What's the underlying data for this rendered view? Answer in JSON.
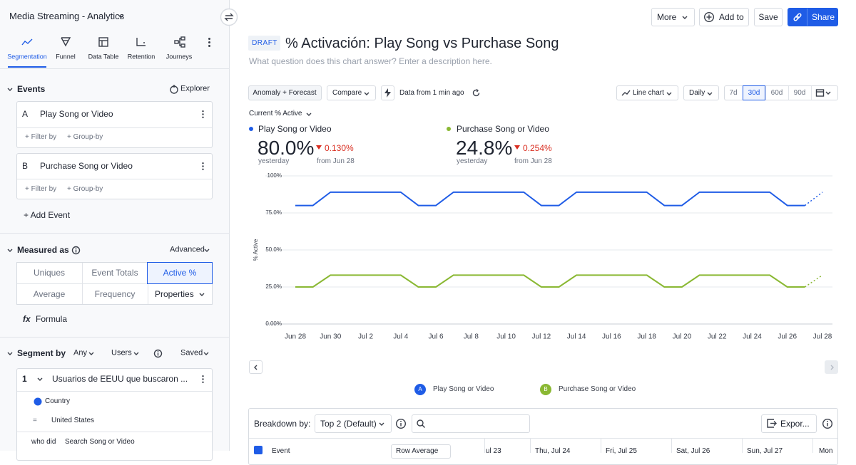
{
  "sidebar": {
    "project": "Media Streaming - Analytics",
    "tabs": [
      "Segmentation",
      "Funnel",
      "Data Table",
      "Retention",
      "Journeys"
    ],
    "events_heading": "Events",
    "explorer": "Explorer",
    "events": [
      {
        "letter": "A",
        "name": "Play Song or Video",
        "filter": "+ Filter by",
        "group": "+ Group-by"
      },
      {
        "letter": "B",
        "name": "Purchase Song or Video",
        "filter": "+ Filter by",
        "group": "+ Group-by"
      }
    ],
    "add_event": "+ Add Event",
    "measured_as": "Measured as",
    "advanced": "Advanced",
    "measures": [
      "Uniques",
      "Event Totals",
      "Active %",
      "Average",
      "Frequency",
      "Properties"
    ],
    "formula_icon": "fx",
    "formula": "Formula",
    "segment_by": "Segment by",
    "any": "Any",
    "users": "Users",
    "saved": "Saved",
    "segment": {
      "number": "1",
      "name": "Usuarios de EEUU que buscaron ...",
      "property": "Country",
      "operator": "=",
      "value": "United States",
      "who_did": "who did",
      "event": "Search Song or Video"
    }
  },
  "header": {
    "more": "More",
    "add_to": "Add to",
    "save": "Save",
    "share": "Share",
    "draft": "DRAFT",
    "title": "% Activación: Play Song vs Purchase Song",
    "description": "What question does this chart answer? Enter a description here."
  },
  "toolbar": {
    "anomaly": "Anomaly + Forecast",
    "compare": "Compare",
    "freshness": "Data from 1 min ago",
    "chart_type": "Line chart",
    "interval": "Daily",
    "ranges": [
      "7d",
      "30d",
      "60d",
      "90d"
    ]
  },
  "metric_selector": "Current % Active",
  "summary": [
    {
      "value": "80.0%",
      "change": "0.130%",
      "period": "yesterday",
      "from": "from Jun 28"
    },
    {
      "value": "24.8%",
      "change": "0.254%",
      "period": "yesterday",
      "from": "from Jun 28"
    }
  ],
  "chart_data": {
    "type": "line",
    "ylabel": "% Active",
    "categories": [
      "Jun 28",
      null,
      "Jun 30",
      null,
      "Jul 2",
      null,
      "Jul 4",
      null,
      "Jul 6",
      null,
      "Jul 8",
      null,
      "Jul 10",
      null,
      "Jul 12",
      null,
      "Jul 14",
      null,
      "Jul 16",
      null,
      "Jul 18",
      null,
      "Jul 20",
      null,
      "Jul 22",
      null,
      "Jul 24",
      null,
      "Jul 26",
      null,
      "Jul 28"
    ],
    "series": [
      {
        "name": "Play Song or Video",
        "color": "#1f5ce6",
        "forecast_last": true,
        "values": [
          80,
          80,
          89,
          89,
          89,
          89,
          89,
          80,
          80,
          89,
          89,
          89,
          89,
          89,
          80,
          80,
          89,
          89,
          89,
          89,
          89,
          80,
          80,
          89,
          89,
          89,
          89,
          89,
          80,
          80,
          89
        ]
      },
      {
        "name": "Purchase Song or Video",
        "color": "#8ab833",
        "forecast_last": true,
        "values": [
          25,
          25,
          33,
          33,
          33,
          33,
          33,
          25,
          25,
          33,
          33,
          33,
          33,
          33,
          25,
          25,
          33,
          33,
          33,
          33,
          33,
          25,
          25,
          33,
          33,
          33,
          33,
          33,
          25,
          25,
          33
        ]
      }
    ],
    "ylim": [
      0,
      100
    ],
    "yticks": [
      {
        "value": 0,
        "label": "0.00%"
      },
      {
        "value": 25,
        "label": "25.0%"
      },
      {
        "value": 50,
        "label": "50.0%"
      },
      {
        "value": 75,
        "label": "75.0%"
      },
      {
        "value": 100,
        "label": "100%"
      }
    ],
    "grid": true
  },
  "breakdown": {
    "label": "Breakdown by:",
    "select": "Top 2 (Default)",
    "export": "Expor...",
    "columns": [
      "Event",
      "Row Average",
      "ul 23",
      "Thu, Jul 24",
      "Fri, Jul 25",
      "Sat, Jul 26",
      "Sun, Jul 27",
      "Mon"
    ]
  }
}
